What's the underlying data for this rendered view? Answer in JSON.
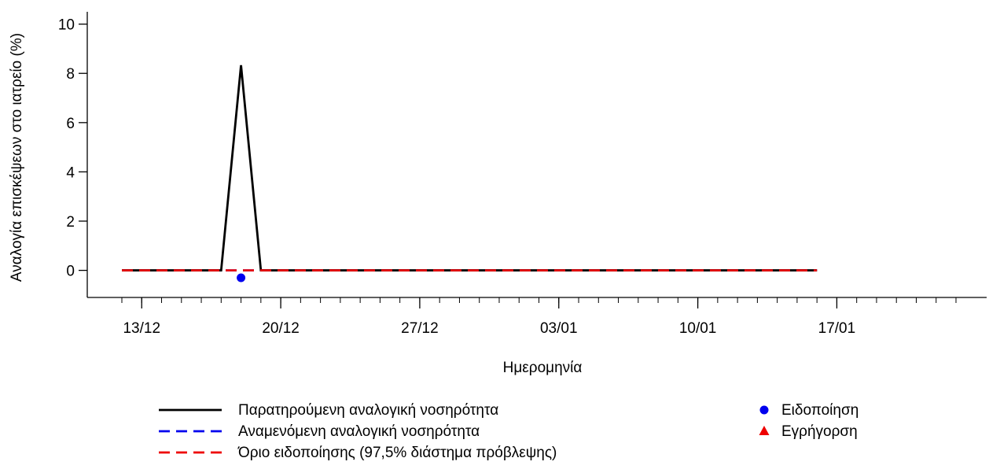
{
  "chart_data": {
    "type": "line",
    "xlabel": "Ημερομηνία",
    "ylabel": "Αναλογία επισκέψεων στο ιατρείο (%)",
    "xlim": [
      "2020-12-12",
      "2021-01-23"
    ],
    "ylim": [
      -1.1,
      10.5
    ],
    "y_ticks": [
      0,
      2,
      4,
      6,
      8,
      10
    ],
    "x_ticks": [
      {
        "date": "2020-12-13",
        "label": "13/12"
      },
      {
        "date": "2020-12-20",
        "label": "20/12"
      },
      {
        "date": "2020-12-27",
        "label": "27/12"
      },
      {
        "date": "2021-01-03",
        "label": "03/01"
      },
      {
        "date": "2021-01-10",
        "label": "10/01"
      },
      {
        "date": "2021-01-17",
        "label": "17/01"
      }
    ],
    "grid": false,
    "legend_position": "bottom",
    "series": [
      {
        "name": "Παρατηρούμενη αναλογική νοσηρότητα",
        "style": "solid",
        "color": "#000000",
        "x": [
          "2020-12-12",
          "2020-12-17",
          "2020-12-18",
          "2020-12-19",
          "2021-01-16"
        ],
        "y": [
          0,
          0,
          8.33,
          0,
          0
        ]
      },
      {
        "name": "Αναμενόμενη αναλογική νοσηρότητα",
        "style": "dashed",
        "color": "#0000ee",
        "x": [
          "2020-12-12",
          "2021-01-16"
        ],
        "y": [
          0,
          0
        ]
      },
      {
        "name": "Όριο ειδοποίησης (97,5% διάστημα πρόβλεψης)",
        "style": "dashed",
        "color": "#ee0000",
        "x": [
          "2020-12-12",
          "2021-01-16"
        ],
        "y": [
          0,
          0
        ]
      }
    ],
    "markers": [
      {
        "name": "Ειδοποίηση",
        "shape": "circle",
        "color": "#0000ee",
        "points": [
          {
            "x": "2020-12-18",
            "y": -0.3
          }
        ]
      },
      {
        "name": "Εγρήγορση",
        "shape": "triangle",
        "color": "#ee0000",
        "points": []
      }
    ]
  }
}
